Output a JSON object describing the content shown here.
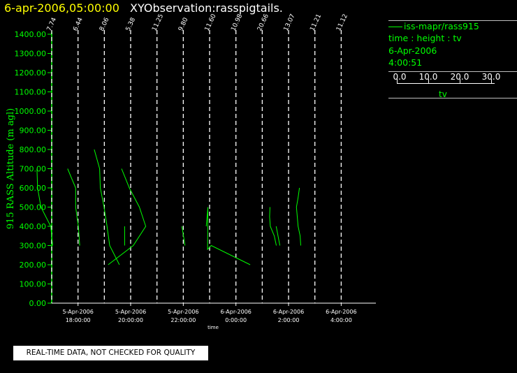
{
  "header": {
    "timestamp": "6-apr-2006,05:00:00",
    "title": "XYObservation:rasspigtails."
  },
  "legend": {
    "series_label": "iss-mapr/rass915",
    "description": "time : height : tv",
    "date": "6-Apr-2006",
    "time": "4:00:51",
    "scale_ticks": [
      "0.0",
      "10.0",
      "20.0",
      "30.0"
    ],
    "scale_label": "tv"
  },
  "footer": {
    "notice": "REAL-TIME DATA, NOT CHECKED FOR QUALITY"
  },
  "colors": {
    "background": "#000000",
    "data": "#00ff00",
    "axis": "#ffffff",
    "header_timestamp": "#ffff00"
  },
  "chart_data": {
    "type": "line",
    "title": "XYObservation:rasspigtails.",
    "ylabel": "915 RASS Altitude (m agl)",
    "xlabel": "time",
    "ylim": [
      0,
      1400
    ],
    "y_ticks": [
      "0.00",
      "100.00",
      "200.00",
      "300.00",
      "400.00",
      "500.00",
      "600.00",
      "700.00",
      "800.00",
      "900.00",
      "1000.00",
      "1100.00",
      "1200.00",
      "1300.00",
      "1400.00"
    ],
    "x_ticks": [
      {
        "date": "5-Apr-2006",
        "time": "18:00:00",
        "hours": 18
      },
      {
        "date": "5-Apr-2006",
        "time": "20:00:00",
        "hours": 20
      },
      {
        "date": "5-Apr-2006",
        "time": "22:00:00",
        "hours": 22
      },
      {
        "date": "6-Apr-2006",
        "time": "0:00:00",
        "hours": 24
      },
      {
        "date": "6-Apr-2006",
        "time": "2:00:00",
        "hours": 26
      },
      {
        "date": "6-Apr-2006",
        "time": "4:00:00",
        "hours": 28
      }
    ],
    "xlim_hours": [
      17.0,
      29.0
    ],
    "profiles": [
      {
        "label": "7.74",
        "hours": 17.0
      },
      {
        "label": "6.44",
        "hours": 18.0
      },
      {
        "label": "8.06",
        "hours": 19.0
      },
      {
        "label": "5.38",
        "hours": 20.0
      },
      {
        "label": "11.25",
        "hours": 21.0
      },
      {
        "label": "9.80",
        "hours": 22.0
      },
      {
        "label": "11.60",
        "hours": 23.0
      },
      {
        "label": "10.98",
        "hours": 24.0
      },
      {
        "label": "20.66",
        "hours": 25.0
      },
      {
        "label": "13.07",
        "hours": 26.0
      },
      {
        "label": "11.21",
        "hours": 27.0
      },
      {
        "label": "11.12",
        "hours": 28.0
      }
    ],
    "tv_scale": [
      0,
      30
    ],
    "series": [
      {
        "profile_hours": 17.0,
        "points": [
          [
            5.6,
            700
          ],
          [
            5.8,
            600
          ],
          [
            6.8,
            500
          ],
          [
            9.7,
            400
          ],
          [
            10.3,
            300
          ]
        ]
      },
      {
        "profile_hours": 18.0,
        "points": [
          [
            6.9,
            700
          ],
          [
            8.1,
            650
          ],
          [
            9.3,
            600
          ],
          [
            9.3,
            500
          ],
          [
            10.1,
            400
          ],
          [
            10.5,
            300
          ]
        ]
      },
      {
        "profile_hours": 19.0,
        "points": [
          [
            7.0,
            800
          ],
          [
            8.6,
            700
          ],
          [
            8.8,
            600
          ],
          [
            9.9,
            500
          ],
          [
            10.8,
            400
          ],
          [
            11.6,
            300
          ],
          [
            14.5,
            200
          ]
        ]
      },
      {
        "profile_hours": 20.0,
        "points": [
          [
            7.3,
            700
          ],
          [
            9.6,
            600
          ],
          [
            12.6,
            500
          ],
          [
            14.5,
            400
          ],
          [
            10.8,
            300
          ],
          [
            3.3,
            200
          ]
        ]
      },
      {
        "profile_hours": 20.0,
        "points": [
          [
            8.2,
            400
          ],
          [
            8.2,
            300
          ]
        ]
      },
      {
        "profile_hours": 22.0,
        "points": [
          [
            9.6,
            400
          ],
          [
            10.5,
            300
          ]
        ]
      },
      {
        "profile_hours": 23.0,
        "points": [
          [
            9.0,
            400
          ],
          [
            9.5,
            500
          ],
          [
            9.4,
            300
          ],
          [
            9.4,
            280
          ],
          [
            10.5,
            300
          ],
          [
            22.1,
            200
          ]
        ]
      },
      {
        "profile_hours": 25.0,
        "points": [
          [
            12.3,
            500
          ],
          [
            12.2,
            450
          ],
          [
            12.4,
            400
          ],
          [
            13.6,
            350
          ],
          [
            14.2,
            300
          ]
        ]
      },
      {
        "profile_hours": 26.0,
        "points": [
          [
            6.3,
            400
          ],
          [
            7.4,
            300
          ]
        ]
      },
      {
        "profile_hours": 27.0,
        "points": [
          [
            5.4,
            600
          ],
          [
            5.0,
            550
          ],
          [
            4.5,
            500
          ],
          [
            5.0,
            400
          ],
          [
            5.6,
            350
          ],
          [
            5.8,
            300
          ]
        ]
      }
    ]
  }
}
